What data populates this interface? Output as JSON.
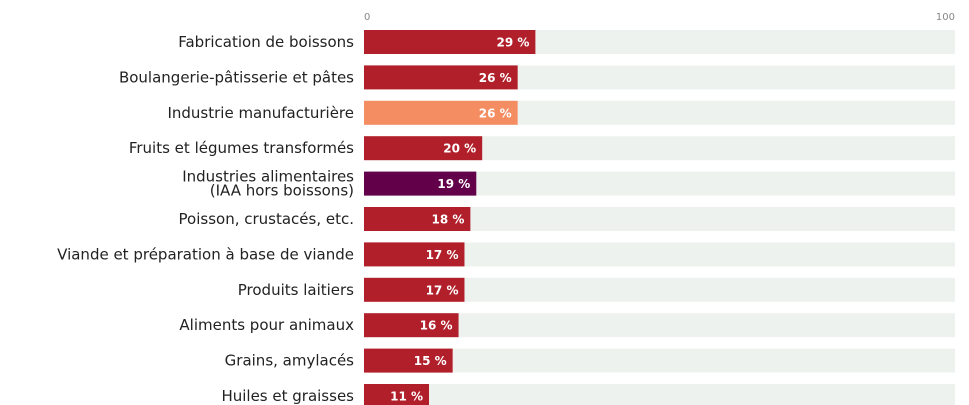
{
  "chart_data": {
    "type": "bar",
    "orientation": "horizontal",
    "categories": [
      "Fabrication de boissons",
      "Boulangerie-pâtisserie et pâtes",
      "Industrie manufacturière",
      "Fruits et légumes transformés",
      "Industries alimentaires\n(IAA hors boissons)",
      "Poisson, crustacés, etc.",
      "Viande et préparation à base de viande",
      "Produits laitiers",
      "Aliments pour animaux",
      "Grains, amylacés",
      "Huiles et graisses"
    ],
    "values": [
      29,
      26,
      26,
      20,
      19,
      18,
      17,
      17,
      16,
      15,
      11
    ],
    "value_labels": [
      "29 %",
      "26 %",
      "26 %",
      "20 %",
      "19 %",
      "18 %",
      "17 %",
      "17 %",
      "16 %",
      "15 %",
      "11 %"
    ],
    "colors": [
      "#b01f2a",
      "#b01f2a",
      "#f48d62",
      "#b01f2a",
      "#63004a",
      "#b01f2a",
      "#b01f2a",
      "#b01f2a",
      "#b01f2a",
      "#b01f2a",
      "#b01f2a"
    ],
    "track_color": "#eef2ef",
    "xlim": [
      0,
      100
    ],
    "xticks": [
      0,
      100
    ]
  }
}
